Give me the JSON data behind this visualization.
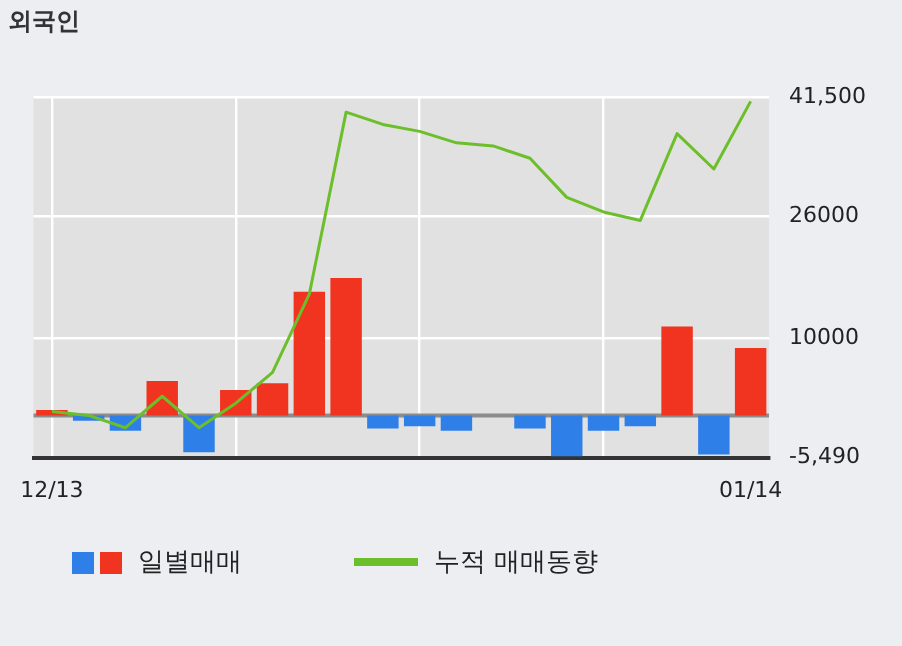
{
  "chart_data": {
    "type": "bar",
    "title": "외국인",
    "categories": [
      "12/13",
      null,
      null,
      null,
      null,
      null,
      null,
      null,
      null,
      null,
      null,
      null,
      null,
      null,
      null,
      null,
      null,
      null,
      null,
      "01/14"
    ],
    "series": [
      {
        "name": "일별매매",
        "values": [
          700,
          -700,
          -2000,
          4500,
          -4800,
          3300,
          4200,
          16100,
          17900,
          -1700,
          -1400,
          -2000,
          0,
          -1700,
          -5300,
          -2000,
          -1400,
          11600,
          -5100,
          8800
        ],
        "colors": [
          "#f03420",
          "#2e7fe8",
          "#2e7fe8",
          "#f03420",
          "#2e7fe8",
          "#f03420",
          "#f03420",
          "#f03420",
          "#f03420",
          "#2e7fe8",
          "#2e7fe8",
          "#2e7fe8",
          "#2e7fe8",
          "#2e7fe8",
          "#2e7fe8",
          "#2e7fe8",
          "#2e7fe8",
          "#f03420",
          "#2e7fe8",
          "#f03420"
        ]
      },
      {
        "name": "누적 매매동향",
        "type": "line",
        "color": "#6cbf2a",
        "values": [
          500,
          0,
          -1600,
          2500,
          -1600,
          1600,
          5600,
          15800,
          39500,
          37900,
          37000,
          35500,
          35100,
          33500,
          28400,
          26500,
          25400,
          36700,
          32100,
          40900
        ]
      }
    ],
    "ylim": [
      -5490,
      41500
    ],
    "yticks": [
      {
        "value": -5490,
        "label": "-5,490"
      },
      10000,
      26000,
      {
        "value": 41500,
        "label": "41,500"
      }
    ],
    "ref_lines": [
      {
        "axis": "y",
        "value": 0,
        "color": "#8c8c8c"
      }
    ],
    "grid": true,
    "legend": "bottom",
    "marker": "none",
    "line_style": "solid"
  }
}
